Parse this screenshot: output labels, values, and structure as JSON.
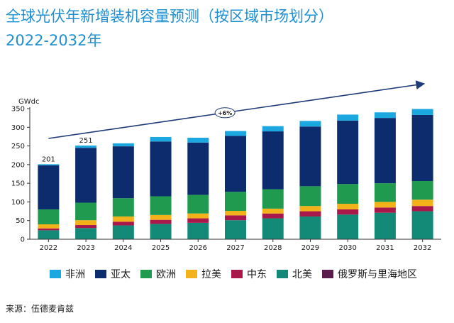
{
  "header": {
    "title_line1": "全球光伏年新增装机容量预测（按区域市场划分）",
    "title_line2": "2022-2032年"
  },
  "source": "来源：伍德麦肯兹",
  "colors": {
    "非洲": "#1ba8e0",
    "亚太": "#0c2c6e",
    "欧洲": "#1f9a4f",
    "拉美": "#f3b21a",
    "中东": "#a8184a",
    "北美": "#138a78",
    "俄罗斯与里海地区": "#5a1b4d",
    "trend_arrow": "#1f3a78",
    "title": "#1e8fd0"
  },
  "chart_data": {
    "type": "bar",
    "stacked": true,
    "ylabel": "GWdc",
    "ylim": [
      0,
      350
    ],
    "yticks": [
      0,
      50,
      100,
      150,
      200,
      250,
      300,
      350
    ],
    "grid": false,
    "legend_position": "bottom",
    "categories": [
      "2022",
      "2023",
      "2024",
      "2025",
      "2026",
      "2027",
      "2028",
      "2029",
      "2030",
      "2031",
      "2032"
    ],
    "series": [
      {
        "name": "俄罗斯与里海地区",
        "values": [
          1,
          1,
          1,
          1,
          1,
          1,
          1,
          1,
          1,
          1,
          1
        ]
      },
      {
        "name": "北美",
        "values": [
          23,
          29,
          36,
          40,
          43,
          50,
          55,
          60,
          65,
          70,
          74
        ]
      },
      {
        "name": "中东",
        "values": [
          5,
          8,
          10,
          11,
          12,
          13,
          13,
          14,
          14,
          14,
          14
        ]
      },
      {
        "name": "拉美",
        "values": [
          11,
          13,
          14,
          13,
          13,
          12,
          13,
          14,
          15,
          15,
          17
        ]
      },
      {
        "name": "欧洲",
        "values": [
          40,
          47,
          49,
          50,
          50,
          51,
          52,
          53,
          53,
          50,
          50
        ]
      },
      {
        "name": "亚太",
        "values": [
          118,
          147,
          139,
          147,
          140,
          150,
          155,
          160,
          170,
          175,
          177
        ]
      },
      {
        "name": "非洲",
        "values": [
          3,
          6,
          8,
          12,
          13,
          13,
          14,
          15,
          16,
          15,
          16
        ]
      }
    ],
    "annotations": {
      "bar_labels": [
        {
          "category": "2022",
          "text": "201"
        },
        {
          "category": "2023",
          "text": "251"
        }
      ],
      "trend_label": "+6%"
    },
    "legend_order": [
      "非洲",
      "亚太",
      "欧洲",
      "拉美",
      "中东",
      "北美",
      "俄罗斯与里海地区"
    ]
  }
}
